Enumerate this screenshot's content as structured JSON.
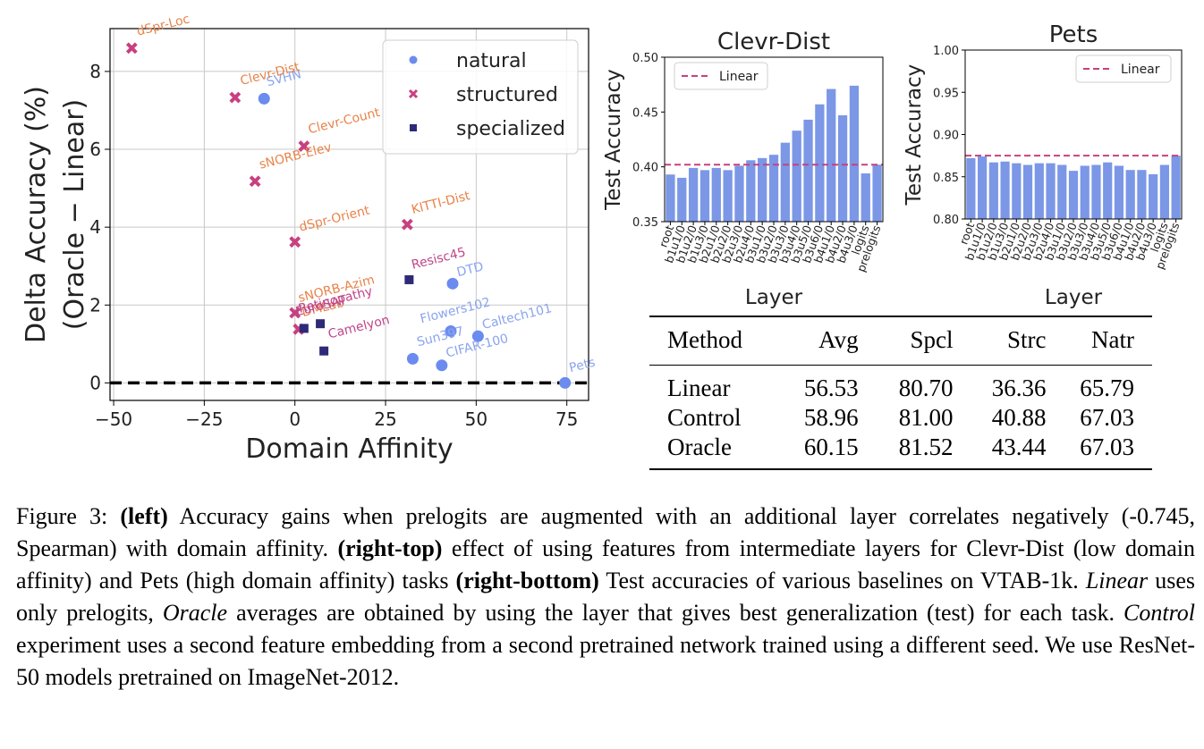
{
  "chart_data": [
    {
      "type": "scatter",
      "id": "left",
      "xlabel": "Domain Affinity",
      "ylabel_line1": "Delta Accuracy (%)",
      "ylabel_line2": "(Oracle − Linear)",
      "xlim": [
        -51,
        81
      ],
      "ylim": [
        -0.45,
        9.1
      ],
      "xticks": [
        "-50",
        "-25",
        "0",
        "25",
        "50",
        "75"
      ],
      "yticks": [
        "0",
        "2",
        "4",
        "6",
        "8"
      ],
      "grid": true,
      "legend_position": "top-right",
      "reference_line_y": 0,
      "series": [
        {
          "name": "natural",
          "marker": "circle",
          "color": "#6b8bef",
          "label_color": "#8aa4ee",
          "points": [
            {
              "label": "SVHN",
              "x": -8.5,
              "y": 7.3
            },
            {
              "label": "DTD",
              "x": 43.5,
              "y": 2.55
            },
            {
              "label": "Flowers102",
              "x": 43,
              "y": 1.33
            },
            {
              "label": "Caltech101",
              "x": 50.5,
              "y": 1.2
            },
            {
              "label": "Sun397",
              "x": 32.5,
              "y": 0.62
            },
            {
              "label": "CIFAR-100",
              "x": 40.5,
              "y": 0.45
            },
            {
              "label": "Pets",
              "x": 74.5,
              "y": 0.0
            }
          ]
        },
        {
          "name": "structured",
          "marker": "x",
          "color": "#c8407f",
          "label_color": "#e8834a",
          "points": [
            {
              "label": "dSpr-Loc",
              "x": -45,
              "y": 8.6
            },
            {
              "label": "Clevr-Dist",
              "x": -16.5,
              "y": 7.33
            },
            {
              "label": "Clevr-Count",
              "x": 2.5,
              "y": 6.08
            },
            {
              "label": "sNORB-Elev",
              "x": -11,
              "y": 5.18
            },
            {
              "label": "KITTI-Dist",
              "x": 31,
              "y": 4.07
            },
            {
              "label": "dSpr-Orient",
              "x": 0,
              "y": 3.62
            },
            {
              "label": "sNORB-Azim",
              "x": 0,
              "y": 1.8
            },
            {
              "label": "DMLab",
              "x": 1,
              "y": 1.38
            }
          ]
        },
        {
          "name": "specialized",
          "marker": "square",
          "color": "#2e2a78",
          "label_color": "#c0458a",
          "points": [
            {
              "label": "Resisc45",
              "x": 31.5,
              "y": 2.65
            },
            {
              "label": "Retinopathy",
              "x": 7,
              "y": 1.52
            },
            {
              "label": "EuroSAT",
              "x": 2.5,
              "y": 1.4
            },
            {
              "label": "Camelyon",
              "x": 8,
              "y": 0.82
            }
          ]
        }
      ]
    },
    {
      "type": "bar",
      "id": "clevr",
      "title": "Clevr-Dist",
      "xlabel": "Layer",
      "ylabel": "Test Accuracy",
      "ylim": [
        0.35,
        0.5
      ],
      "yticks": [
        "0.35",
        "0.40",
        "0.45",
        "0.50"
      ],
      "bar_color": "#7b97e6",
      "categories": [
        "root",
        "b1u1/0",
        "b1u2/0",
        "b1u3/0",
        "b2u1/0",
        "b2u2/0",
        "b2u3/0",
        "b2u4/0",
        "b3u1/0",
        "b3u2/0",
        "b3u3/0",
        "b3u4/0",
        "b3u5/0",
        "b3u6/0",
        "b4u1/0",
        "b4u2/0",
        "b4u3/0",
        "logits",
        "prelogits"
      ],
      "values": [
        0.393,
        0.39,
        0.399,
        0.397,
        0.399,
        0.397,
        0.401,
        0.406,
        0.408,
        0.411,
        0.422,
        0.433,
        0.443,
        0.457,
        0.471,
        0.447,
        0.474,
        0.394,
        0.402
      ],
      "reference": {
        "label": "Linear",
        "value": 0.402,
        "color": "#c8407f"
      }
    },
    {
      "type": "bar",
      "id": "pets",
      "title": "Pets",
      "xlabel": "Layer",
      "ylabel": "Test Accuracy",
      "ylim": [
        0.8,
        1.0
      ],
      "yticks": [
        "0.80",
        "0.85",
        "0.90",
        "0.95",
        "1.00"
      ],
      "bar_color": "#7b97e6",
      "categories": [
        "root",
        "b1u1/0",
        "b1u2/0",
        "b1u3/0",
        "b2u1/0",
        "b2u2/0",
        "b2u3/0",
        "b2u4/0",
        "b3u1/0",
        "b3u2/0",
        "b3u3/0",
        "b3u4/0",
        "b3u5/0",
        "b3u6/0",
        "b4u1/0",
        "b4u2/0",
        "b4u3/0",
        "logits",
        "prelogits"
      ],
      "values": [
        0.872,
        0.874,
        0.867,
        0.868,
        0.866,
        0.864,
        0.866,
        0.866,
        0.864,
        0.857,
        0.863,
        0.864,
        0.867,
        0.863,
        0.858,
        0.858,
        0.853,
        0.864,
        0.875
      ],
      "reference": {
        "label": "Linear",
        "value": 0.875,
        "color": "#c8407f"
      }
    }
  ],
  "table": {
    "headers": [
      "Method",
      "Avg",
      "Spcl",
      "Strc",
      "Natr"
    ],
    "rows": [
      [
        "Linear",
        "56.53",
        "80.70",
        "36.36",
        "65.79"
      ],
      [
        "Control",
        "58.96",
        "81.00",
        "40.88",
        "67.03"
      ],
      [
        "Oracle",
        "60.15",
        "81.52",
        "43.44",
        "67.03"
      ]
    ]
  },
  "caption": {
    "figure_label": "Figure 3:",
    "part1_bold": "(left)",
    "part1": " Accuracy gains when prelogits are augmented with an additional layer correlates negatively (-0.745, Spearman) with domain affinity. ",
    "part2_bold": "(right-top)",
    "part2": " effect of using features from intermediate layers for Clevr-Dist (low domain affinity) and Pets (high domain affinity) tasks ",
    "part3_bold": "(right-bottom)",
    "part3": " Test accuracies of various baselines on VTAB-1k. ",
    "linear_em": "Linear",
    "part4": " uses only prelogits, ",
    "oracle_em": "Oracle",
    "part5": " averages are obtained by using the layer that gives best generalization (test) for each task. ",
    "control_em": "Control",
    "part6": " experiment uses a second feature embedding from a second pretrained network trained using a different seed. We use ResNet-50 models pretrained on ImageNet-2012."
  }
}
